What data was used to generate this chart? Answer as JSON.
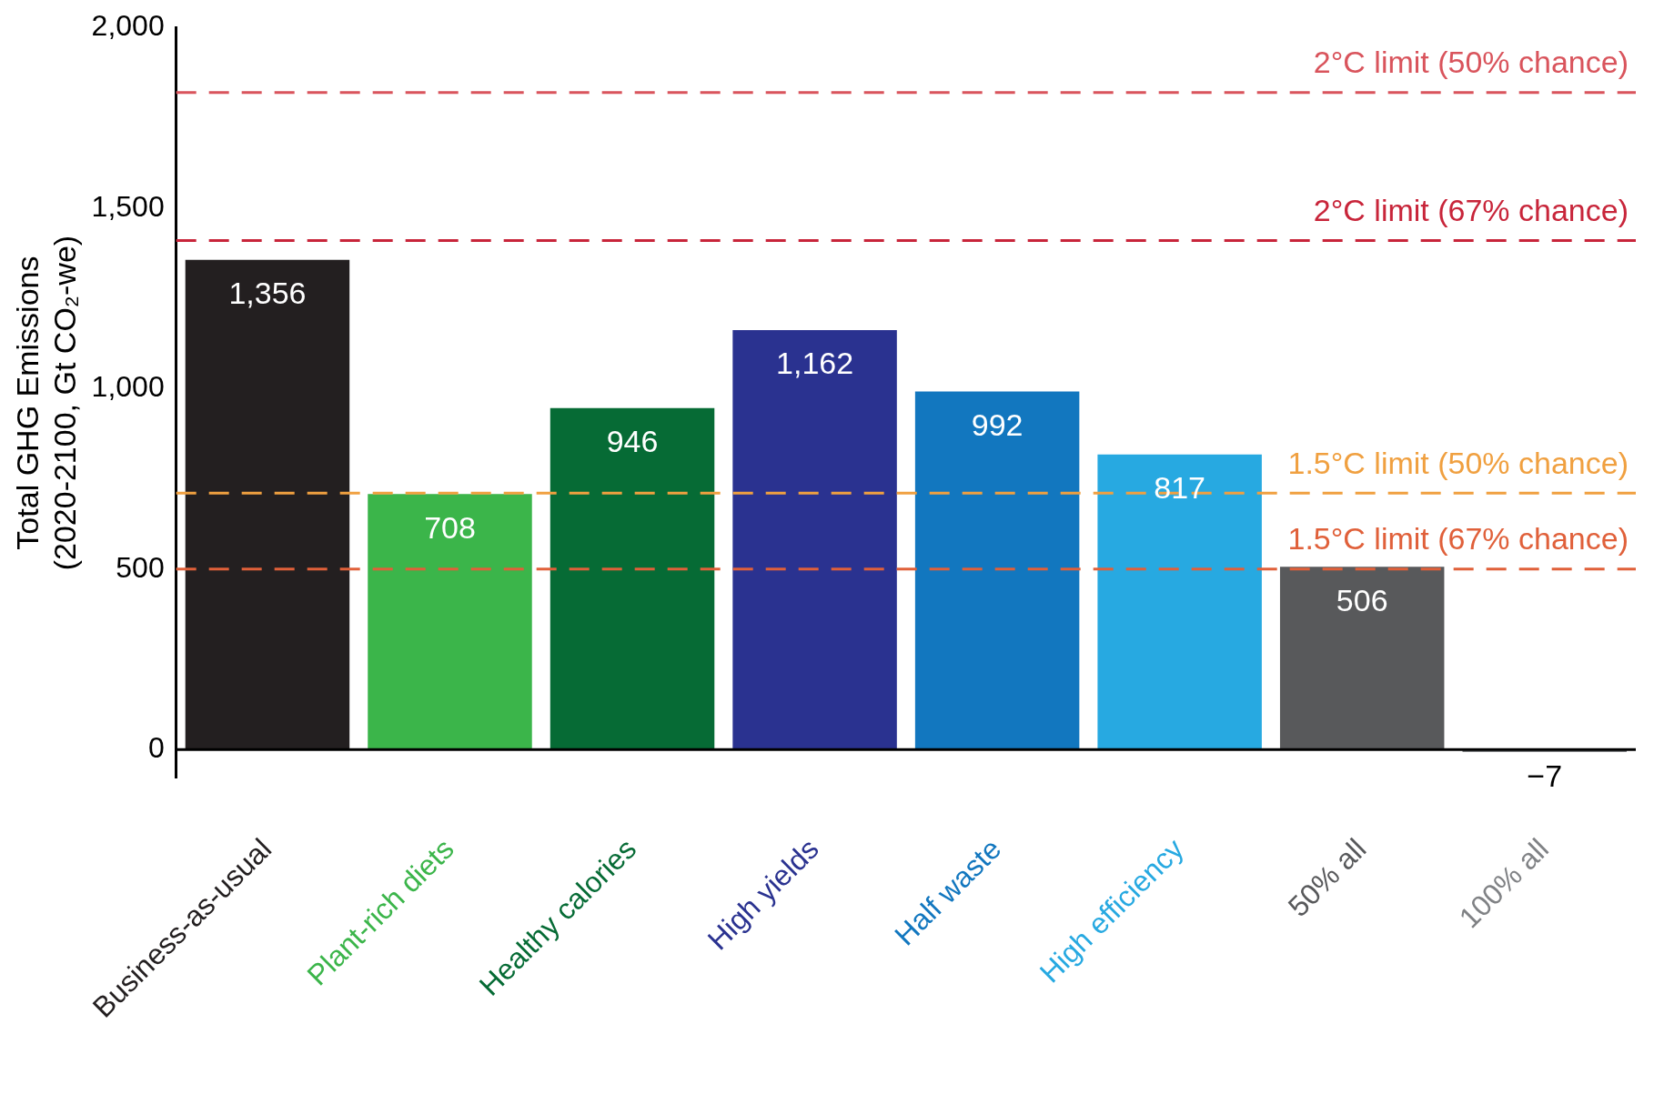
{
  "chart_data": {
    "type": "bar",
    "ylabel": "Total GHG Emissions\n(2020-2100, Gt CO₂-we)",
    "categories": [
      "Business-as-usual",
      "Plant-rich diets",
      "Healthy calories",
      "High yields",
      "Half waste",
      "High efficiency",
      "50% all",
      "100% all"
    ],
    "values": [
      1356,
      708,
      946,
      1162,
      992,
      817,
      506,
      -7
    ],
    "colors": [
      "#231f20",
      "#3bb54a",
      "#066b35",
      "#2a3290",
      "#1277bf",
      "#27a9e1",
      "#58595b",
      "#808285"
    ],
    "value_labels": [
      "1,356",
      "708",
      "946",
      "1,162",
      "992",
      "817",
      "506",
      "−7"
    ],
    "ylim": [
      -80,
      2000
    ],
    "yticks": [
      0,
      500,
      {
        "value": 1000,
        "label": "1,000"
      },
      {
        "value": 1500,
        "label": "1,500"
      },
      {
        "value": 2000,
        "label": "2,000"
      }
    ],
    "grid": false,
    "legend": false,
    "ref_lines": [
      {
        "axis": "y",
        "value": 1820,
        "label": "2°C limit (50% chance)",
        "color": "#d9545c",
        "line_style": "dashed"
      },
      {
        "axis": "y",
        "value": 1410,
        "label": "2°C limit (67% chance)",
        "color": "#c8253a",
        "line_style": "dashed"
      },
      {
        "axis": "y",
        "value": 710,
        "label": "1.5°C limit (50% chance)",
        "color": "#f0a040",
        "line_style": "dashed"
      },
      {
        "axis": "y",
        "value": 500,
        "label": "1.5°C limit (67% chance)",
        "color": "#e0603a",
        "line_style": "dashed"
      }
    ]
  }
}
